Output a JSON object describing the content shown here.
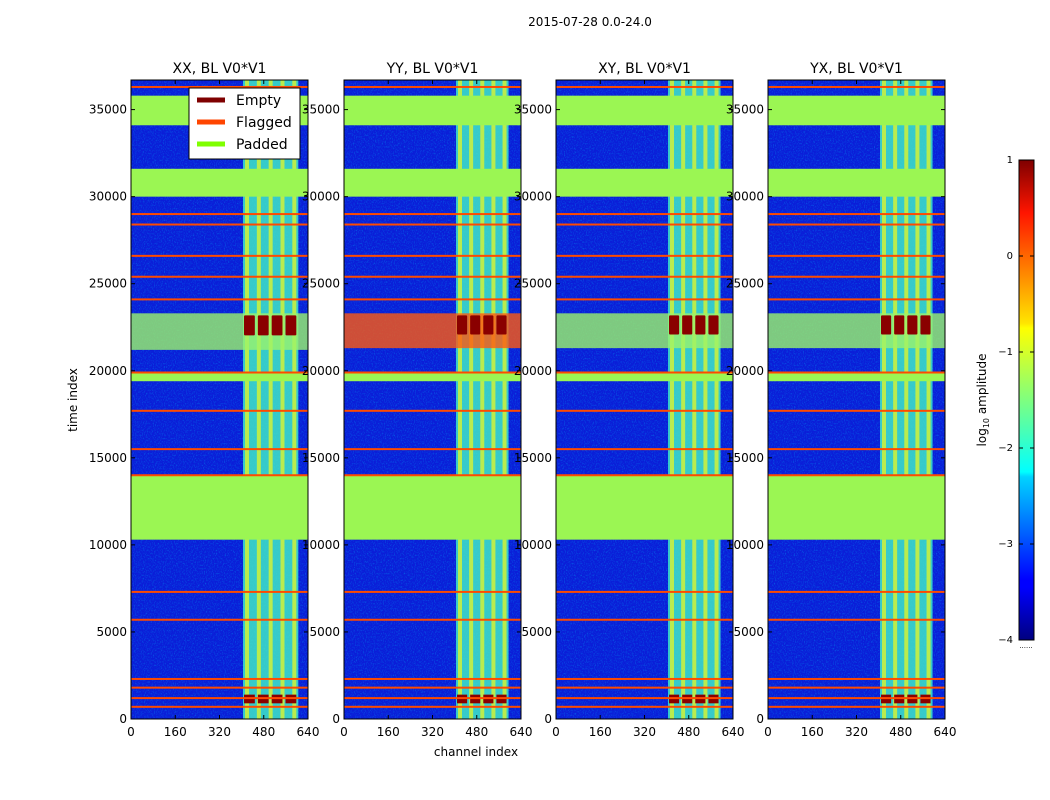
{
  "chart_data": {
    "type": "heatmap",
    "title": "2015-07-28 0.0-24.0",
    "xlabel": "channel index",
    "ylabel": "time index",
    "xlim": [
      0,
      640
    ],
    "ylim": [
      0,
      36700
    ],
    "xticks": [
      0,
      160,
      320,
      480,
      640
    ],
    "yticks": [
      0,
      5000,
      10000,
      15000,
      20000,
      25000,
      30000,
      35000
    ],
    "panels": [
      {
        "title": "XX, BL V0*V1",
        "rfi_band": [
          405,
          605
        ],
        "strong_band": [
          23300,
          21200
        ],
        "bottom_hot": true
      },
      {
        "title": "YY, BL V0*V1",
        "rfi_band": [
          405,
          595
        ],
        "strong_band": [
          23300,
          21300
        ],
        "bottom_hot": true
      },
      {
        "title": "XY, BL V0*V1",
        "rfi_band": [
          405,
          595
        ],
        "strong_band": [
          23300,
          21300
        ],
        "bottom_hot": true
      },
      {
        "title": "YX, BL V0*V1",
        "rfi_band": [
          405,
          595
        ],
        "strong_band": [
          23300,
          21300
        ],
        "bottom_hot": true
      }
    ],
    "padded_ranges": [
      [
        10300,
        14000
      ],
      [
        30000,
        31600
      ],
      [
        34100,
        35800
      ],
      [
        19400,
        19900
      ]
    ],
    "flagged_rows": [
      36300,
      29000,
      28400,
      26600,
      25400,
      24100,
      19900,
      17700,
      15500,
      14000,
      7300,
      5700,
      2300,
      1800,
      1200,
      700
    ],
    "legend": [
      {
        "label": "Empty",
        "color": "#7f0000"
      },
      {
        "label": "Flagged",
        "color": "#ff4500"
      },
      {
        "label": "Padded",
        "color": "#7fff00"
      }
    ],
    "colorbar": {
      "label": "log10 amplitude",
      "label_main": "log",
      "label_sub": "10",
      "label_tail": " amplitude",
      "range": [
        -4,
        1
      ],
      "ticks": [
        1,
        0,
        -1,
        -2,
        -3,
        -4
      ],
      "tick_labels": [
        "1",
        "0",
        "−1",
        "−2",
        "−3",
        "−4"
      ],
      "footnote": "......"
    },
    "colors": {
      "padded": "#9bf653",
      "flagged": "#ff4a00",
      "empty": "#7f0000",
      "background": "#00007a"
    }
  }
}
